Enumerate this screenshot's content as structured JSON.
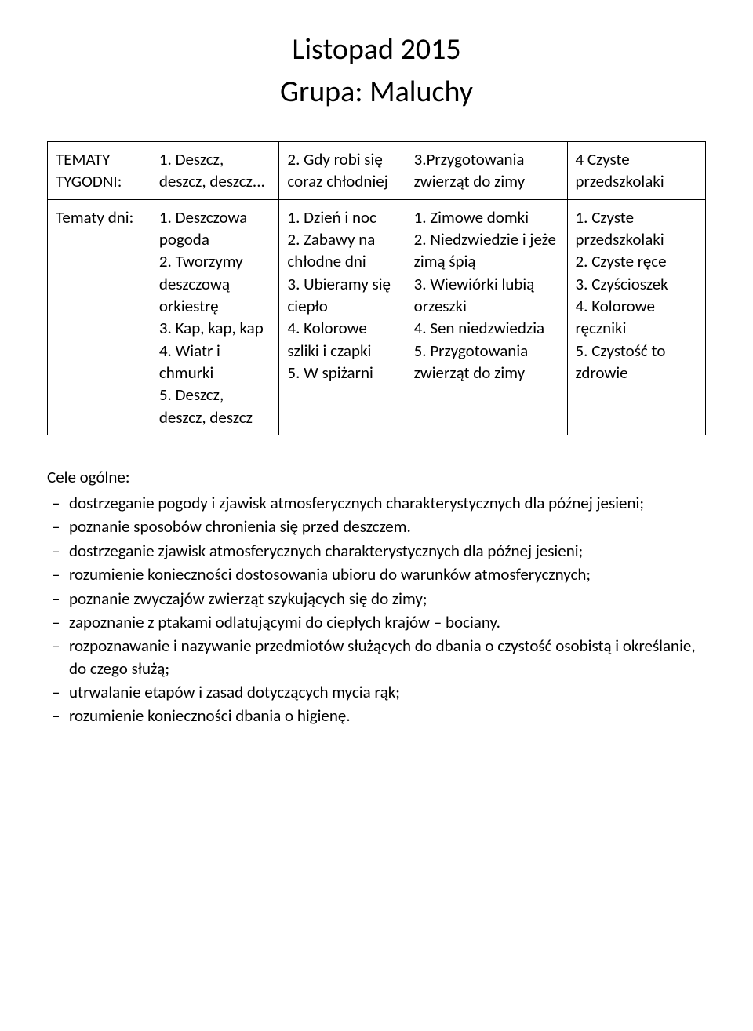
{
  "header": {
    "title": "Listopad 2015",
    "subtitle": "Grupa: Maluchy"
  },
  "table": {
    "row1": {
      "label": "TEMATY TYGODNI:",
      "c1": "1. Deszcz, deszcz, deszcz...",
      "c2": "2. Gdy robi się coraz chłodniej",
      "c3": "3.Przygotowania zwierząt do zimy",
      "c4": "4 Czyste przedszkolaki"
    },
    "row2": {
      "label": "Tematy dni:",
      "c1": "1. Deszczowa pogoda\n2. Tworzymy deszczową orkiestrę\n3. Kap, kap, kap\n4. Wiatr i chmurki\n5. Deszcz, deszcz, deszcz",
      "c2": "1. Dzień i noc\n2. Zabawy na chłodne dni\n3. Ubieramy się ciepło\n4. Kolorowe szliki i czapki\n5. W spiżarni",
      "c3": "1. Zimowe domki\n2. Niedzwiedzie i jeże zimą śpią\n3. Wiewiórki lubią orzeszki\n4. Sen niedzwiedzia\n5. Przygotowania zwierząt do zimy",
      "c4": "1. Czyste przedszkolaki\n2. Czyste ręce\n3. Czyścioszek\n4. Kolorowe ręczniki\n5. Czystość to zdrowie"
    }
  },
  "goals": {
    "heading": "Cele ogólne:",
    "items": [
      "dostrzeganie pogody i zjawisk atmosferycznych charakterystycznych dla późnej jesieni;",
      "poznanie sposobów chronienia się przed deszczem.",
      "dostrzeganie zjawisk atmosferycznych charakterystycznych dla późnej jesieni;",
      "rozumienie konieczności dostosowania ubioru do warunków atmosferycznych;",
      "poznanie zwyczajów zwierząt szykujących się do zimy;",
      "zapoznanie z ptakami odlatującymi do ciepłych krajów – bociany.",
      "rozpoznawanie i nazywanie przedmiotów służących do dbania o czystość osobistą i określanie, do czego służą;",
      "utrwalanie etapów i zasad dotyczących mycia rąk;",
      "rozumienie konieczności dbania o higienę."
    ]
  }
}
